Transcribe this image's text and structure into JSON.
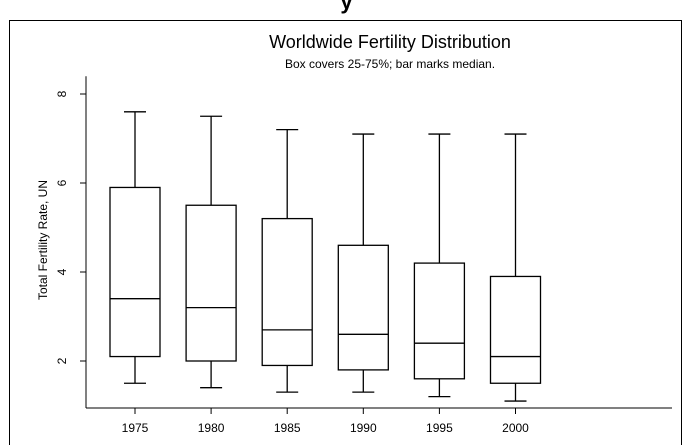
{
  "page": {
    "top_title_fragment": "y"
  },
  "chart_data": {
    "type": "box",
    "title": "Worldwide Fertility Distribution",
    "subtitle": "Box covers 25-75%; bar marks median.",
    "xlabel": "",
    "ylabel": "Total Fertility Rate, UN",
    "categories": [
      "1975",
      "1980",
      "1985",
      "1990",
      "1995",
      "2000"
    ],
    "ylim": [
      1.0,
      8.4
    ],
    "yticks": [
      2,
      4,
      6,
      8
    ],
    "grid": false,
    "boxes": [
      {
        "label": "1975",
        "whisker_low": 1.5,
        "q1": 2.1,
        "median": 3.4,
        "q3": 5.9,
        "whisker_high": 7.6
      },
      {
        "label": "1980",
        "whisker_low": 1.4,
        "q1": 2.0,
        "median": 3.2,
        "q3": 5.5,
        "whisker_high": 7.5
      },
      {
        "label": "1985",
        "whisker_low": 1.3,
        "q1": 1.9,
        "median": 2.7,
        "q3": 5.2,
        "whisker_high": 7.2
      },
      {
        "label": "1990",
        "whisker_low": 1.3,
        "q1": 1.8,
        "median": 2.6,
        "q3": 4.6,
        "whisker_high": 7.1
      },
      {
        "label": "1995",
        "whisker_low": 1.2,
        "q1": 1.6,
        "median": 2.4,
        "q3": 4.2,
        "whisker_high": 7.1
      },
      {
        "label": "2000",
        "whisker_low": 1.1,
        "q1": 1.5,
        "median": 2.1,
        "q3": 3.9,
        "whisker_high": 7.1
      }
    ],
    "colors": {
      "line": "#000000",
      "background": "#ffffff"
    }
  }
}
